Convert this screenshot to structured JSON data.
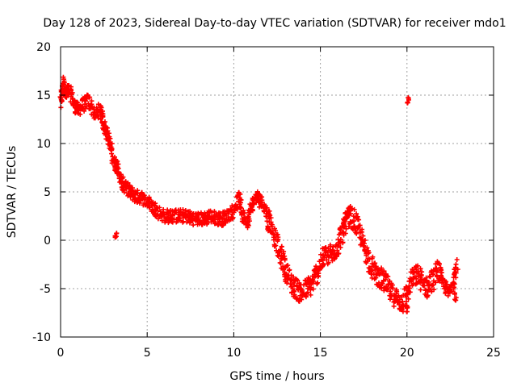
{
  "chart_data": {
    "type": "scatter",
    "title": "Day 128 of 2023, Sidereal Day-to-day VTEC variation (SDTVAR) for receiver mdo1",
    "xlabel": "GPS time / hours",
    "ylabel": "SDTVAR / TECUs",
    "xlim": [
      0,
      25
    ],
    "ylim": [
      -10,
      20
    ],
    "xticks": [
      0,
      5,
      10,
      15,
      20,
      25
    ],
    "yticks": [
      -10,
      -5,
      0,
      5,
      10,
      15,
      20
    ],
    "grid": true,
    "marker": "+",
    "color": "#ff0000",
    "series": [
      {
        "name": "SDTVAR",
        "trace_x": [
          0.0,
          0.15,
          0.3,
          0.5,
          0.8,
          1.0,
          1.3,
          1.6,
          2.0,
          2.3,
          2.5,
          2.7,
          2.9,
          3.1,
          3.3,
          3.5,
          3.7,
          4.0,
          4.3,
          4.6,
          5.0,
          5.3,
          5.6,
          6.0,
          6.3,
          6.6,
          7.0,
          7.3,
          7.6,
          8.0,
          8.3,
          8.6,
          9.0,
          9.3,
          9.6,
          10.0,
          10.3,
          10.5,
          10.8,
          11.0,
          11.3,
          11.6,
          11.9,
          12.2,
          12.5,
          12.8,
          13.0,
          13.3,
          13.6,
          13.9,
          14.2,
          14.5,
          14.8,
          15.1,
          15.4,
          15.7,
          16.0,
          16.3,
          16.5,
          16.7,
          17.0,
          17.3,
          17.6,
          17.9,
          18.2,
          18.5,
          18.8,
          19.1,
          19.4,
          19.7,
          20.0,
          20.3,
          20.6,
          20.9,
          21.2,
          21.5,
          21.8,
          22.1,
          22.4,
          22.7,
          22.9
        ],
        "trace_y": [
          14.0,
          16.5,
          15.0,
          15.5,
          14.0,
          13.5,
          14.0,
          14.5,
          13.0,
          13.5,
          12.0,
          11.0,
          9.5,
          8.0,
          7.5,
          6.0,
          5.5,
          5.0,
          4.5,
          4.5,
          4.0,
          3.5,
          3.0,
          2.5,
          2.5,
          2.5,
          2.5,
          2.5,
          2.3,
          2.2,
          2.2,
          2.5,
          2.3,
          2.2,
          2.5,
          3.0,
          4.5,
          2.5,
          2.0,
          3.5,
          4.5,
          4.0,
          3.0,
          1.5,
          -0.5,
          -2.0,
          -3.0,
          -4.5,
          -5.0,
          -5.5,
          -5.0,
          -4.5,
          -3.5,
          -2.0,
          -1.5,
          -1.5,
          -0.5,
          1.0,
          2.0,
          2.5,
          2.0,
          0.5,
          -1.0,
          -2.5,
          -3.5,
          -4.0,
          -4.5,
          -5.5,
          -6.0,
          -6.5,
          -5.5,
          -4.0,
          -3.5,
          -4.5,
          -5.0,
          -4.0,
          -3.0,
          -4.5,
          -5.5,
          -4.0,
          -2.5
        ],
        "outlier_clusters": [
          {
            "x": 3.2,
            "y": 0.4
          },
          {
            "x": 20.05,
            "y": 14.3
          },
          {
            "x": 12.0,
            "y": 1.0
          },
          {
            "x": 20.0,
            "y": -7.0
          },
          {
            "x": 22.8,
            "y": -5.8
          }
        ]
      }
    ]
  }
}
